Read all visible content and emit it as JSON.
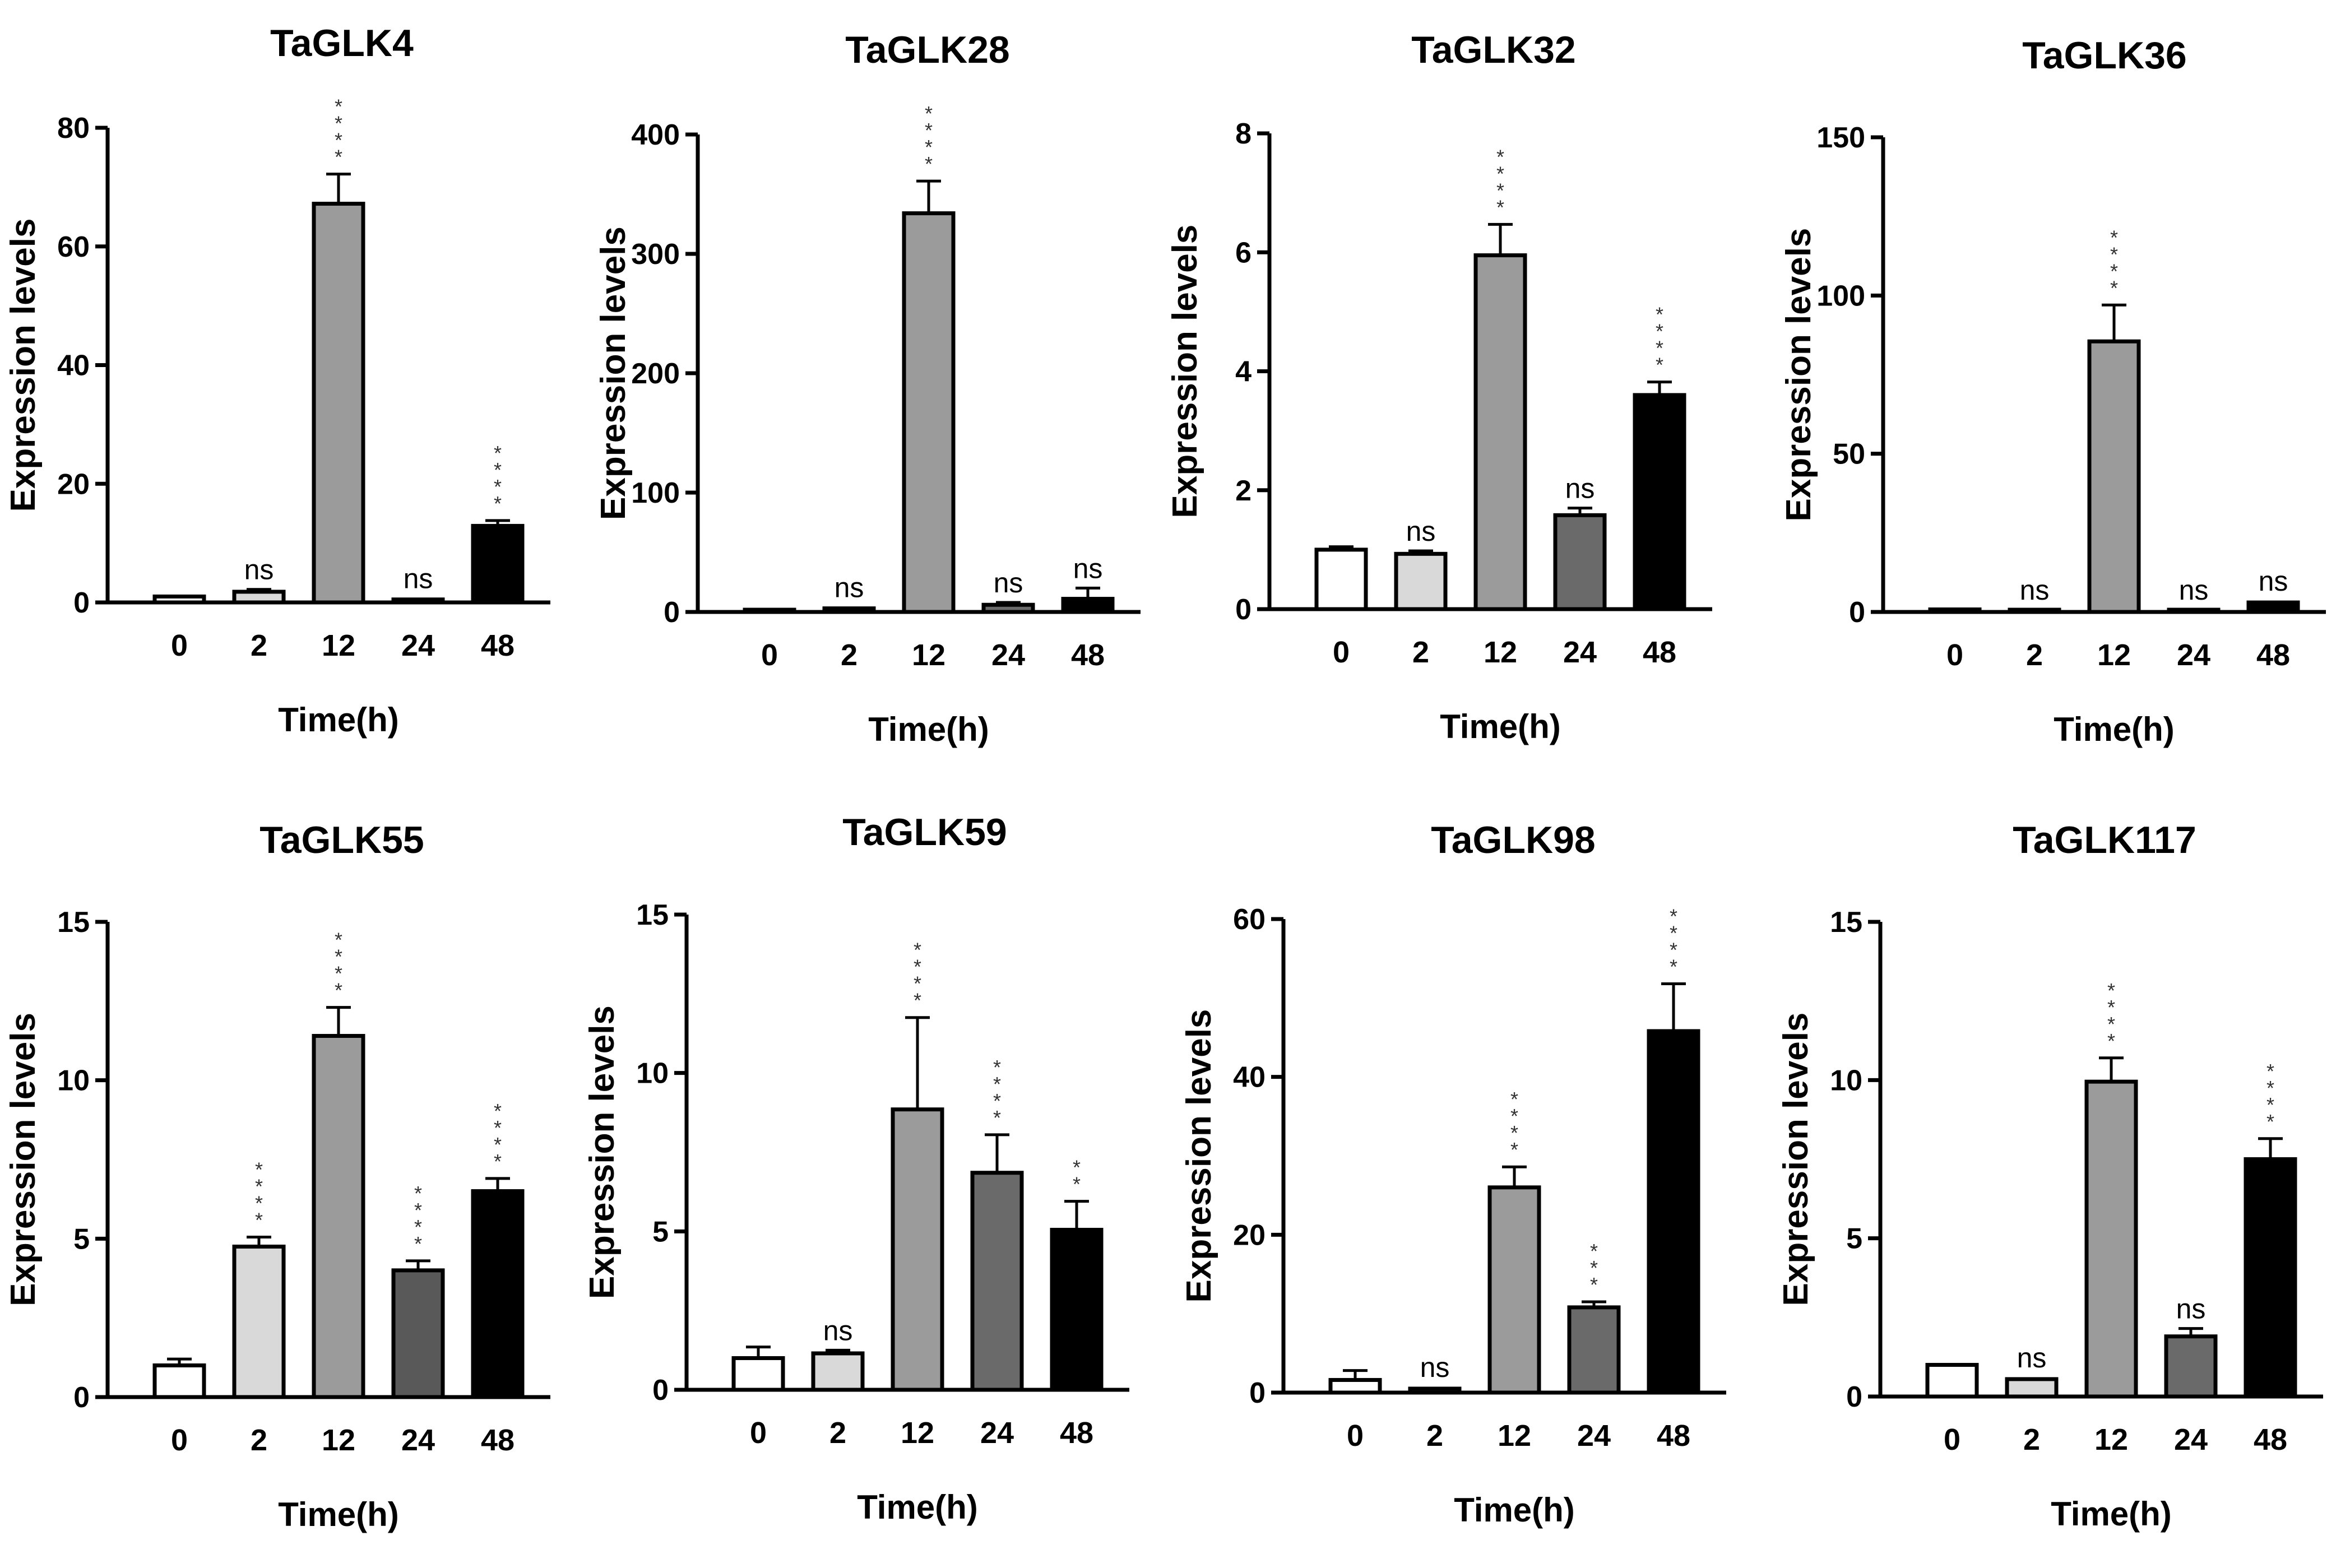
{
  "chart_data": [
    {
      "type": "bar",
      "title": "TaGLK4",
      "xlabel": "Time(h)",
      "ylabel": "Expression levels",
      "categories": [
        "0",
        "2",
        "12",
        "24",
        "48"
      ],
      "values": [
        1.0,
        1.8,
        67.2,
        0.5,
        12.9
      ],
      "errors": [
        0.2,
        0.4,
        5.0,
        0.2,
        0.9
      ],
      "significance": [
        "",
        "ns",
        "****",
        "ns",
        "****"
      ],
      "ylim": [
        0,
        80
      ],
      "yticks": [
        0,
        20,
        40,
        60,
        80
      ],
      "bar_colors": [
        "#ffffff",
        "#d9d9d9",
        "#9b9b9b",
        "#6a6a6a",
        "#000000"
      ]
    },
    {
      "type": "bar",
      "title": "TaGLK28",
      "xlabel": "Time(h)",
      "ylabel": "Expression levels",
      "categories": [
        "0",
        "2",
        "12",
        "24",
        "48"
      ],
      "values": [
        1.0,
        3.0,
        334,
        6.0,
        11.0
      ],
      "errors": [
        0.5,
        1.0,
        27,
        2.0,
        9.0
      ],
      "significance": [
        "",
        "ns",
        "****",
        "ns",
        "ns"
      ],
      "ylim": [
        0,
        400
      ],
      "yticks": [
        0,
        100,
        200,
        300,
        400
      ],
      "bar_colors": [
        "#ffffff",
        "#d9d9d9",
        "#9b9b9b",
        "#6a6a6a",
        "#000000"
      ]
    },
    {
      "type": "bar",
      "title": "TaGLK32",
      "xlabel": "Time(h)",
      "ylabel": "Expression levels",
      "categories": [
        "0",
        "2",
        "12",
        "24",
        "48"
      ],
      "values": [
        1.0,
        0.93,
        5.95,
        1.58,
        3.6
      ],
      "errors": [
        0.05,
        0.05,
        0.52,
        0.12,
        0.22
      ],
      "significance": [
        "",
        "ns",
        "****",
        "ns",
        "****"
      ],
      "ylim": [
        0,
        8
      ],
      "yticks": [
        0,
        2,
        4,
        6,
        8
      ],
      "bar_colors": [
        "#ffffff",
        "#d9d9d9",
        "#9b9b9b",
        "#6a6a6a",
        "#000000"
      ]
    },
    {
      "type": "bar",
      "title": "TaGLK36",
      "xlabel": "Time(h)",
      "ylabel": "Expression levels",
      "categories": [
        "0",
        "2",
        "12",
        "24",
        "48"
      ],
      "values": [
        0.8,
        0.3,
        85.5,
        0.3,
        3.0
      ],
      "errors": [
        0.2,
        0.1,
        11.5,
        0.1,
        0.5
      ],
      "significance": [
        "",
        "ns",
        "****",
        "ns",
        "ns"
      ],
      "ylim": [
        0,
        150
      ],
      "yticks": [
        0,
        50,
        100,
        150
      ],
      "bar_colors": [
        "#ffffff",
        "#d9d9d9",
        "#9b9b9b",
        "#6a6a6a",
        "#000000"
      ]
    },
    {
      "type": "bar",
      "title": "TaGLK55",
      "xlabel": "Time(h)",
      "ylabel": "Expression levels",
      "categories": [
        "0",
        "2",
        "12",
        "24",
        "48"
      ],
      "values": [
        1.0,
        4.75,
        11.4,
        4.0,
        6.5
      ],
      "errors": [
        0.2,
        0.3,
        0.9,
        0.3,
        0.4
      ],
      "significance": [
        "",
        "****",
        "****",
        "****",
        "****"
      ],
      "ylim": [
        0,
        15
      ],
      "yticks": [
        0,
        5,
        10,
        15
      ],
      "bar_colors": [
        "#ffffff",
        "#d9d9d9",
        "#9b9b9b",
        "#595959",
        "#000000"
      ]
    },
    {
      "type": "bar",
      "title": "TaGLK59",
      "xlabel": "Time(h)",
      "ylabel": "Expression levels",
      "categories": [
        "0",
        "2",
        "12",
        "24",
        "48"
      ],
      "values": [
        1.0,
        1.15,
        8.85,
        6.85,
        5.05
      ],
      "errors": [
        0.35,
        0.1,
        2.9,
        1.2,
        0.9
      ],
      "significance": [
        "",
        "ns",
        "****",
        "****",
        "**"
      ],
      "ylim": [
        0,
        15
      ],
      "yticks": [
        0,
        5,
        10,
        15
      ],
      "bar_colors": [
        "#ffffff",
        "#d9d9d9",
        "#9b9b9b",
        "#6a6a6a",
        "#000000"
      ]
    },
    {
      "type": "bar",
      "title": "TaGLK98",
      "xlabel": "Time(h)",
      "ylabel": "Expression levels",
      "categories": [
        "0",
        "2",
        "12",
        "24",
        "48"
      ],
      "values": [
        1.6,
        0.5,
        26.0,
        10.8,
        45.8
      ],
      "errors": [
        1.2,
        0.2,
        2.6,
        0.7,
        6.0
      ],
      "significance": [
        "",
        "ns",
        "****",
        "***",
        "****"
      ],
      "ylim": [
        0,
        60
      ],
      "yticks": [
        0,
        20,
        40,
        60
      ],
      "bar_colors": [
        "#ffffff",
        "#d9d9d9",
        "#9b9b9b",
        "#6a6a6a",
        "#000000"
      ]
    },
    {
      "type": "bar",
      "title": "TaGLK117",
      "xlabel": "Time(h)",
      "ylabel": "Expression levels",
      "categories": [
        "0",
        "2",
        "12",
        "24",
        "48"
      ],
      "values": [
        1.0,
        0.55,
        9.95,
        1.9,
        7.5
      ],
      "errors": [
        0.05,
        0.05,
        0.75,
        0.25,
        0.65
      ],
      "significance": [
        "",
        "ns",
        "****",
        "ns",
        "****"
      ],
      "ylim": [
        0,
        15
      ],
      "yticks": [
        0,
        5,
        10,
        15
      ],
      "bar_colors": [
        "#ffffff",
        "#d9d9d9",
        "#9b9b9b",
        "#6a6a6a",
        "#000000"
      ]
    }
  ]
}
